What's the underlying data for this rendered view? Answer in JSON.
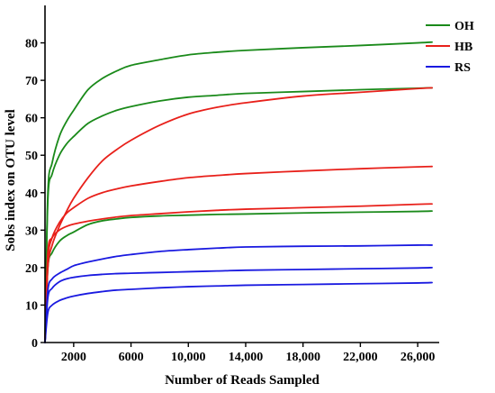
{
  "chart_data": {
    "type": "line",
    "title": "",
    "xlabel": "Number of Reads Sampled",
    "ylabel": "Sobs index on OTU level",
    "xlim": [
      0,
      27500
    ],
    "ylim": [
      0,
      90
    ],
    "xticks": [
      2000,
      6000,
      10000,
      14000,
      18000,
      22000,
      26000
    ],
    "xtick_labels": [
      "2000",
      "6000",
      "10,000",
      "14,000",
      "18,000",
      "22,000",
      "26,000"
    ],
    "yticks": [
      0,
      10,
      20,
      30,
      40,
      50,
      60,
      70,
      80
    ],
    "ytick_labels": [
      "0",
      "10",
      "20",
      "30",
      "40",
      "50",
      "60",
      "70",
      "80"
    ],
    "grid": false,
    "legend_position": "top-right",
    "legend": [
      {
        "label": "OH",
        "color": "#1a8a1a"
      },
      {
        "label": "HB",
        "color": "#e8201a"
      },
      {
        "label": "RS",
        "color": "#1a1ae0"
      }
    ],
    "series": [
      {
        "group": "OH",
        "color": "#1a8a1a",
        "x": [
          0,
          200,
          500,
          1000,
          1500,
          2000,
          3000,
          4000,
          5000,
          6000,
          8000,
          10000,
          12000,
          14000,
          18000,
          22000,
          26000,
          27000
        ],
        "y": [
          0,
          40,
          48,
          55,
          59,
          62,
          67.5,
          70.5,
          72.5,
          74,
          75.5,
          76.8,
          77.5,
          78,
          78.7,
          79.3,
          80,
          80.2
        ]
      },
      {
        "group": "OH",
        "color": "#1a8a1a",
        "x": [
          0,
          200,
          500,
          1000,
          1500,
          2000,
          3000,
          4000,
          5000,
          6000,
          8000,
          10000,
          12000,
          14000,
          18000,
          22000,
          26000,
          27000
        ],
        "y": [
          0,
          38,
          45,
          50,
          53,
          55,
          58.5,
          60.5,
          62,
          63,
          64.5,
          65.5,
          66,
          66.5,
          67,
          67.5,
          67.9,
          68
        ]
      },
      {
        "group": "OH",
        "color": "#1a8a1a",
        "x": [
          0,
          200,
          500,
          1000,
          1500,
          2000,
          3000,
          4000,
          5000,
          6000,
          8000,
          10000,
          12000,
          14000,
          18000,
          22000,
          26000,
          27000
        ],
        "y": [
          0,
          20,
          24,
          27,
          28.5,
          29.5,
          31.5,
          32.5,
          33,
          33.4,
          33.8,
          34,
          34.2,
          34.3,
          34.6,
          34.8,
          35,
          35.1
        ]
      },
      {
        "group": "HB",
        "color": "#e8201a",
        "x": [
          0,
          200,
          500,
          1000,
          1500,
          2000,
          3000,
          4000,
          5000,
          6000,
          8000,
          10000,
          12000,
          14000,
          18000,
          22000,
          26000,
          27000
        ],
        "y": [
          0,
          20,
          26,
          31,
          35,
          38.5,
          44,
          48.5,
          51.5,
          54,
          58,
          61,
          62.8,
          64,
          65.8,
          66.8,
          67.8,
          68
        ]
      },
      {
        "group": "HB",
        "color": "#e8201a",
        "x": [
          0,
          200,
          500,
          1000,
          1500,
          2000,
          3000,
          4000,
          5000,
          6000,
          8000,
          10000,
          12000,
          14000,
          18000,
          22000,
          26000,
          27000
        ],
        "y": [
          0,
          22,
          28,
          32,
          34.5,
          36,
          38.5,
          40,
          41,
          41.8,
          43,
          44,
          44.6,
          45.1,
          45.8,
          46.4,
          46.9,
          47
        ]
      },
      {
        "group": "HB",
        "color": "#e8201a",
        "x": [
          0,
          200,
          500,
          1000,
          1500,
          2000,
          3000,
          4000,
          5000,
          6000,
          8000,
          10000,
          12000,
          14000,
          18000,
          22000,
          26000,
          27000
        ],
        "y": [
          0,
          24,
          28,
          30,
          31,
          31.6,
          32.4,
          33,
          33.5,
          33.9,
          34.4,
          34.9,
          35.3,
          35.6,
          36,
          36.4,
          36.9,
          37
        ]
      },
      {
        "group": "RS",
        "color": "#1a1ae0",
        "x": [
          0,
          200,
          500,
          1000,
          1500,
          2000,
          3000,
          4000,
          5000,
          6000,
          8000,
          10000,
          12000,
          14000,
          18000,
          22000,
          26000,
          27000
        ],
        "y": [
          0,
          14,
          17,
          18.5,
          19.5,
          20.5,
          21.5,
          22.3,
          23,
          23.5,
          24.3,
          24.8,
          25.2,
          25.5,
          25.7,
          25.8,
          26,
          26
        ]
      },
      {
        "group": "RS",
        "color": "#1a1ae0",
        "x": [
          0,
          200,
          500,
          1000,
          1500,
          2000,
          3000,
          4000,
          5000,
          6000,
          8000,
          10000,
          12000,
          14000,
          18000,
          22000,
          26000,
          27000
        ],
        "y": [
          0,
          12,
          14.5,
          16.2,
          17,
          17.4,
          17.9,
          18.2,
          18.4,
          18.5,
          18.7,
          18.9,
          19.1,
          19.3,
          19.5,
          19.7,
          19.9,
          20
        ]
      },
      {
        "group": "RS",
        "color": "#1a1ae0",
        "x": [
          0,
          200,
          500,
          1000,
          1500,
          2000,
          3000,
          4000,
          5000,
          6000,
          8000,
          10000,
          12000,
          14000,
          18000,
          22000,
          26000,
          27000
        ],
        "y": [
          0,
          8,
          10,
          11.2,
          11.9,
          12.4,
          13.1,
          13.6,
          14,
          14.2,
          14.6,
          14.9,
          15.1,
          15.3,
          15.5,
          15.7,
          15.9,
          16
        ]
      }
    ]
  }
}
